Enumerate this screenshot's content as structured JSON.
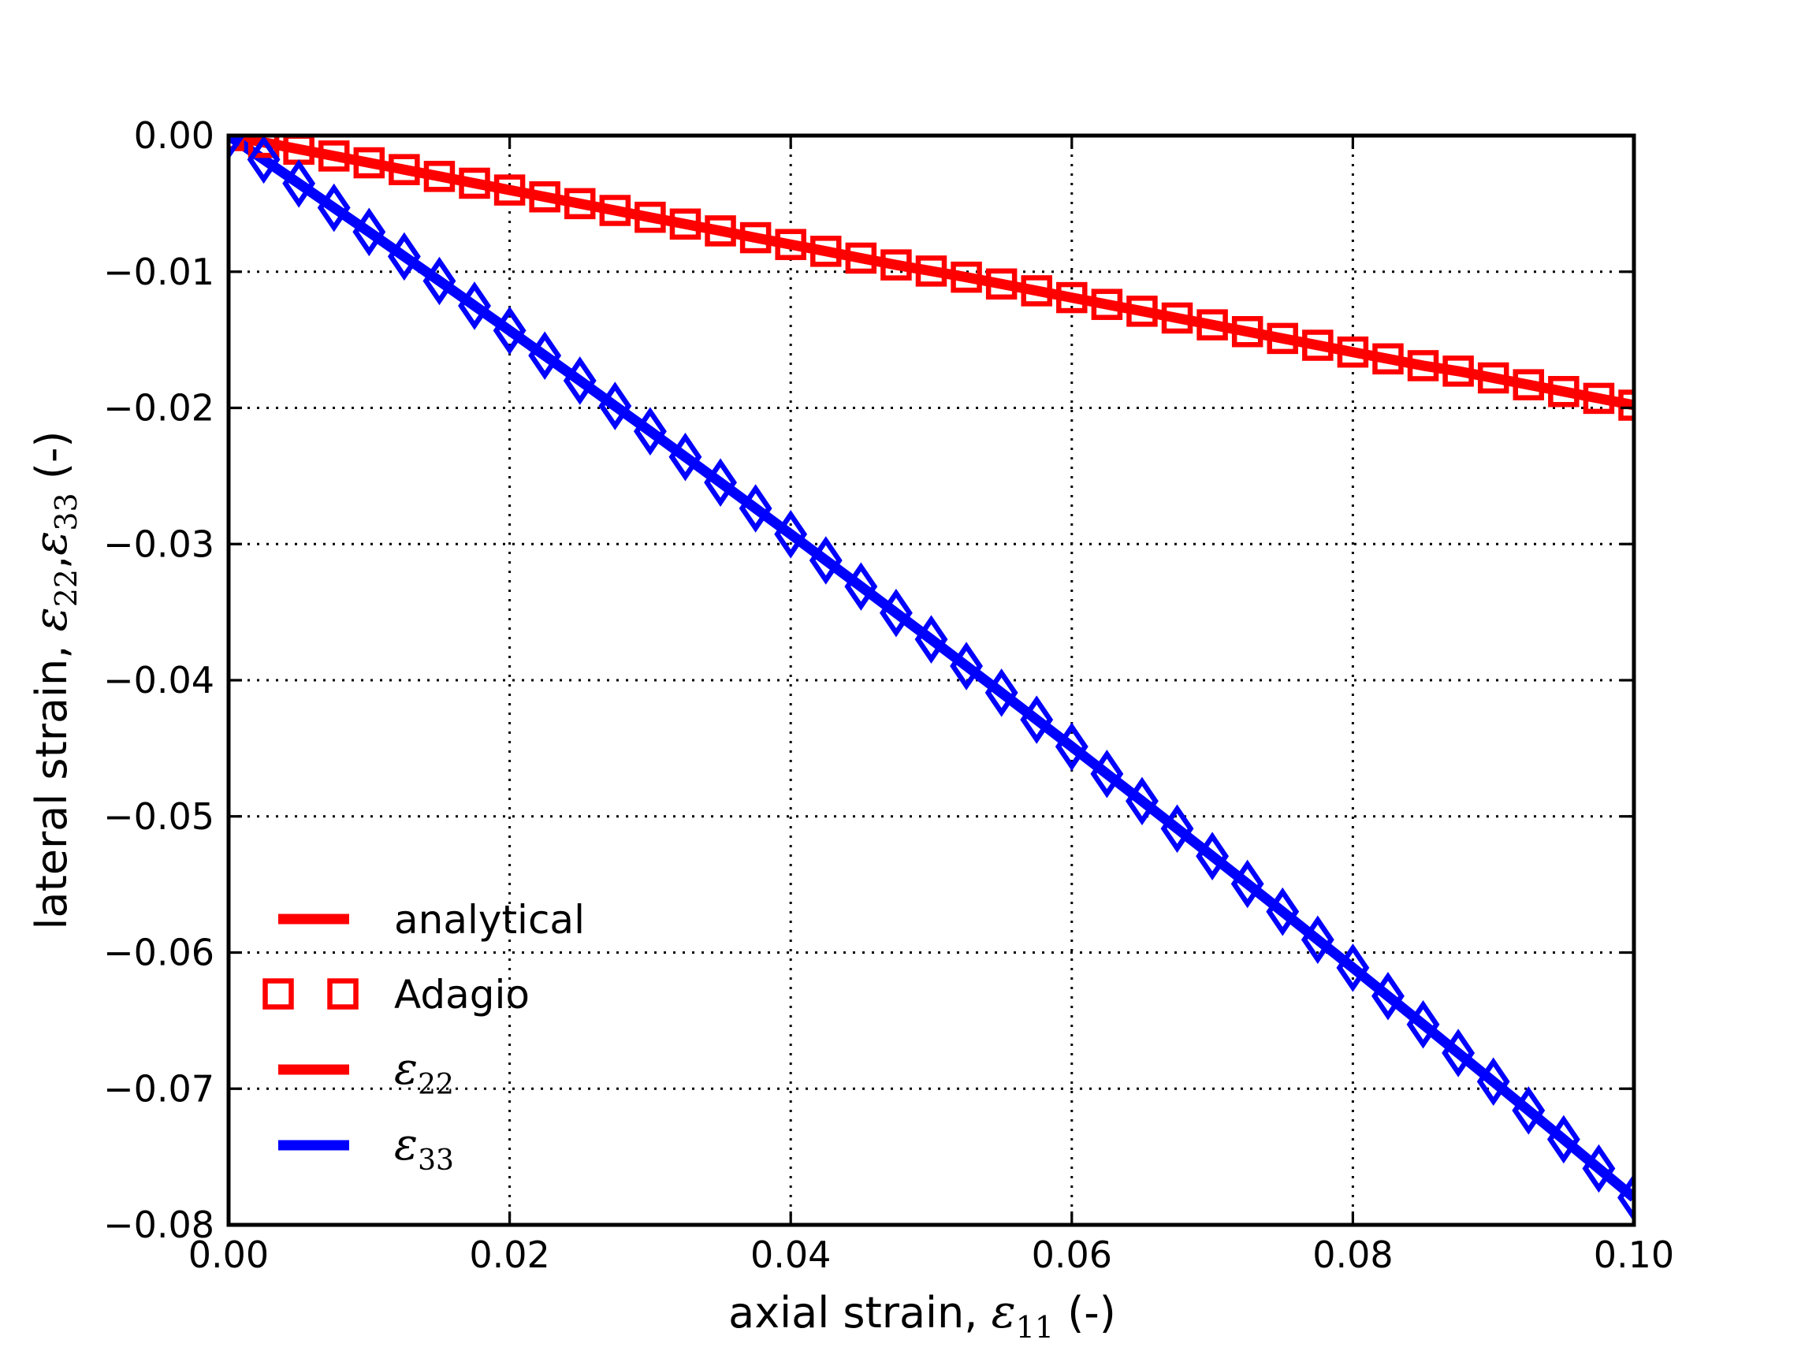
{
  "figure": {
    "background": "#ffffff",
    "axis_color": "#000000",
    "grid_color": "#000000"
  },
  "chart_data": {
    "type": "line",
    "title": "",
    "xlabel": "axial strain, ε_11 (-)",
    "ylabel": "lateral strain, ε_22,ε_33 (-)",
    "xlabel_segments": [
      {
        "t": "axial strain, ",
        "f": "sans"
      },
      {
        "t": "ε",
        "f": "mathit"
      },
      {
        "t": "11",
        "f": "sub"
      },
      {
        "t": " (-)",
        "f": "sans"
      }
    ],
    "ylabel_segments": [
      {
        "t": "lateral strain, ",
        "f": "sans"
      },
      {
        "t": "ε",
        "f": "mathit"
      },
      {
        "t": "22",
        "f": "sub"
      },
      {
        "t": ",",
        "f": "sans"
      },
      {
        "t": "ε",
        "f": "mathit"
      },
      {
        "t": "33",
        "f": "sub"
      },
      {
        "t": " (-)",
        "f": "sans"
      }
    ],
    "xlim": [
      0.0,
      0.1
    ],
    "ylim": [
      -0.08,
      0.0
    ],
    "grid": true,
    "grid_style": "dotted",
    "legend_position": "lower-left-inside",
    "xticks": [
      0.0,
      0.02,
      0.04,
      0.06,
      0.08,
      0.1
    ],
    "xtick_labels": [
      "0.00",
      "0.02",
      "0.04",
      "0.06",
      "0.08",
      "0.10"
    ],
    "yticks": [
      0.0,
      -0.01,
      -0.02,
      -0.03,
      -0.04,
      -0.05,
      -0.06,
      -0.07,
      -0.08
    ],
    "ytick_labels": [
      "0.00",
      "−0.01",
      "−0.02",
      "−0.03",
      "−0.04",
      "−0.05",
      "−0.06",
      "−0.07",
      "−0.08"
    ],
    "x": [
      0.0,
      0.0025,
      0.005,
      0.0075,
      0.01,
      0.0125,
      0.015,
      0.0175,
      0.02,
      0.0225,
      0.025,
      0.0275,
      0.03,
      0.0325,
      0.035,
      0.0375,
      0.04,
      0.0425,
      0.045,
      0.0475,
      0.05,
      0.0525,
      0.055,
      0.0575,
      0.06,
      0.0625,
      0.065,
      0.0675,
      0.07,
      0.0725,
      0.075,
      0.0775,
      0.08,
      0.0825,
      0.085,
      0.0875,
      0.09,
      0.0925,
      0.095,
      0.0975,
      0.1
    ],
    "series": [
      {
        "name": "epsilon_22",
        "legend_label": "ε_22",
        "color": "#ff0000",
        "line": "solid",
        "marker": "square",
        "values": [
          0.0,
          -0.0005,
          -0.001,
          -0.0015,
          -0.002,
          -0.0025,
          -0.003,
          -0.0035,
          -0.004,
          -0.0045,
          -0.005,
          -0.0055,
          -0.006,
          -0.0065,
          -0.007,
          -0.0075,
          -0.008,
          -0.0085,
          -0.009,
          -0.0095,
          -0.00995,
          -0.0104,
          -0.0109,
          -0.0114,
          -0.0119,
          -0.0124,
          -0.0129,
          -0.0134,
          -0.0139,
          -0.0144,
          -0.0149,
          -0.0154,
          -0.0159,
          -0.0164,
          -0.0169,
          -0.0173,
          -0.0178,
          -0.0183,
          -0.0188,
          -0.0193,
          -0.0198
        ]
      },
      {
        "name": "epsilon_33",
        "legend_label": "ε_33",
        "color": "#0000ff",
        "line": "solid",
        "marker": "thin_diamond",
        "values": [
          0.0,
          -0.00176,
          -0.00352,
          -0.0053,
          -0.00708,
          -0.00888,
          -0.01068,
          -0.0125,
          -0.01432,
          -0.01616,
          -0.018,
          -0.01986,
          -0.02172,
          -0.0236,
          -0.02548,
          -0.02738,
          -0.02928,
          -0.0312,
          -0.03312,
          -0.03506,
          -0.037,
          -0.03896,
          -0.04092,
          -0.0429,
          -0.04488,
          -0.04688,
          -0.04888,
          -0.0509,
          -0.05292,
          -0.05496,
          -0.057,
          -0.05906,
          -0.06112,
          -0.0632,
          -0.06528,
          -0.06738,
          -0.06948,
          -0.0716,
          -0.07372,
          -0.07586,
          -0.078
        ]
      }
    ],
    "legend": [
      {
        "swatch": "line",
        "color": "#ff0000",
        "segments": [
          {
            "t": "analytical",
            "f": "sans"
          }
        ]
      },
      {
        "swatch": "squares",
        "color": "#ff0000",
        "segments": [
          {
            "t": "Adagio",
            "f": "sans"
          }
        ]
      },
      {
        "swatch": "line",
        "color": "#ff0000",
        "segments": [
          {
            "t": "ε",
            "f": "mathit"
          },
          {
            "t": "22",
            "f": "sub"
          }
        ]
      },
      {
        "swatch": "line",
        "color": "#0000ff",
        "segments": [
          {
            "t": "ε",
            "f": "mathit"
          },
          {
            "t": "33",
            "f": "sub"
          }
        ]
      }
    ]
  }
}
